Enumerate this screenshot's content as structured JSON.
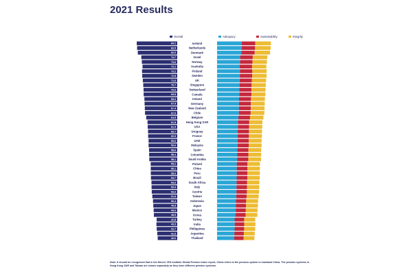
{
  "page": {
    "title": "2021 Results"
  },
  "note": "Note: It should be recognised that in the Mercer CFA Institute Global Pension Index report, China refers to the pension system in mainland China. The pension systems in Hong Kong SAR and Taiwan are shown separately as they have different pension systems.",
  "chart_data": {
    "type": "bar",
    "title": "2021 Results",
    "colors": {
      "Overall": "#2b2e70",
      "Adequacy": "#2aa6d6",
      "Sustainability": "#c5283d",
      "Integrity": "#edbc33"
    },
    "legend": {
      "overall": "Overall",
      "sub_indices": [
        "Adequacy",
        "Sustainability",
        "Integrity"
      ]
    },
    "categories": [
      "Iceland",
      "Netherlands",
      "Denmark",
      "Israel",
      "Norway",
      "Australia",
      "Finland",
      "Sweden",
      "UK",
      "Singapore",
      "Switzerland",
      "Canada",
      "Ireland",
      "Germany",
      "New Zealand",
      "Chile",
      "Belgium",
      "Hong Kong SAR",
      "USA",
      "Uruguay",
      "France",
      "UAE",
      "Malaysia",
      "Spain",
      "Colombia",
      "Saudi Arabia",
      "Poland",
      "China",
      "Peru",
      "Brazil",
      "South Africa",
      "Italy",
      "Austria",
      "Taiwan",
      "Indonesia",
      "Japan",
      "Mexico",
      "Korea",
      "Turkey",
      "India",
      "Philippines",
      "Argentina",
      "Thailand"
    ],
    "series": [
      {
        "name": "Overall",
        "values": [
          84.2,
          83.5,
          82.0,
          74.7,
          73.6,
          72.2,
          73.2,
          72.8,
          71.6,
          70.7,
          70.0,
          69.8,
          68.3,
          67.9,
          67.4,
          67.0,
          64.5,
          61.8,
          61.4,
          60.7,
          60.5,
          59.6,
          59.6,
          58.6,
          58.4,
          58.1,
          55.2,
          55.1,
          55.0,
          54.7,
          53.6,
          53.4,
          53.0,
          51.8,
          50.4,
          49.8,
          49.0,
          48.5,
          42.8,
          43.3,
          42.7,
          41.5,
          40.6
        ]
      }
    ]
  }
}
